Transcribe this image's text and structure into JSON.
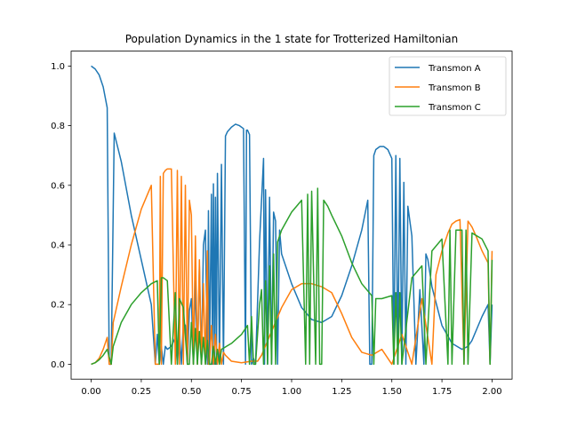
{
  "chart_data": {
    "type": "line",
    "title": "Population Dynamics in the 1 state for Trotterized Hamiltonian",
    "xlabel": "",
    "ylabel": "",
    "xlim": [
      -0.1,
      2.1
    ],
    "ylim": [
      -0.05,
      1.05
    ],
    "xticks": [
      "0.00",
      "0.25",
      "0.50",
      "0.75",
      "1.00",
      "1.25",
      "1.50",
      "1.75",
      "2.00"
    ],
    "yticks": [
      "0.0",
      "0.2",
      "0.4",
      "0.6",
      "0.8",
      "1.0"
    ],
    "grid": false,
    "legend_position": "top-right",
    "series": [
      {
        "name": "Transmon A",
        "color": "#1f77b4",
        "x": [
          0.0,
          0.02,
          0.04,
          0.06,
          0.08,
          0.09,
          0.1,
          0.115,
          0.15,
          0.2,
          0.25,
          0.3,
          0.32,
          0.33,
          0.34,
          0.35,
          0.36,
          0.37,
          0.38,
          0.4,
          0.42,
          0.43,
          0.44,
          0.45,
          0.46,
          0.47,
          0.48,
          0.49,
          0.5,
          0.51,
          0.52,
          0.53,
          0.54,
          0.55,
          0.56,
          0.57,
          0.58,
          0.585,
          0.59,
          0.6,
          0.605,
          0.61,
          0.615,
          0.62,
          0.625,
          0.63,
          0.64,
          0.65,
          0.66,
          0.67,
          0.68,
          0.7,
          0.72,
          0.74,
          0.76,
          0.77,
          0.775,
          0.78,
          0.79,
          0.8,
          0.81,
          0.82,
          0.84,
          0.86,
          0.865,
          0.87,
          0.88,
          0.89,
          0.9,
          0.91,
          0.92,
          0.93,
          0.94,
          0.95,
          1.0,
          1.05,
          1.1,
          1.15,
          1.2,
          1.25,
          1.3,
          1.35,
          1.38,
          1.39,
          1.4,
          1.41,
          1.42,
          1.44,
          1.46,
          1.48,
          1.5,
          1.51,
          1.52,
          1.53,
          1.54,
          1.55,
          1.56,
          1.57,
          1.58,
          1.6,
          1.62,
          1.64,
          1.66,
          1.67,
          1.68,
          1.7,
          1.75,
          1.8,
          1.85,
          1.88,
          1.9,
          1.95,
          1.98,
          1.99,
          2.0
        ],
        "values": [
          1.0,
          0.99,
          0.97,
          0.93,
          0.86,
          0.0,
          0.0,
          0.775,
          0.68,
          0.5,
          0.35,
          0.2,
          0.0,
          0.1,
          0.0,
          0.06,
          0.0,
          0.06,
          0.05,
          0.06,
          0.09,
          0.0,
          0.11,
          0.0,
          0.14,
          0.13,
          0.0,
          0.18,
          0.22,
          0.0,
          0.28,
          0.0,
          0.33,
          0.0,
          0.4,
          0.45,
          0.0,
          0.515,
          0.0,
          0.57,
          0.0,
          0.605,
          0.0,
          0.56,
          0.0,
          0.64,
          0.0,
          0.67,
          0.0,
          0.765,
          0.78,
          0.795,
          0.805,
          0.8,
          0.79,
          0.0,
          0.785,
          0.785,
          0.77,
          0.0,
          0.02,
          0.0,
          0.41,
          0.69,
          0.0,
          0.585,
          0.0,
          0.56,
          0.0,
          0.51,
          0.48,
          0.0,
          0.45,
          0.37,
          0.27,
          0.19,
          0.15,
          0.14,
          0.16,
          0.23,
          0.33,
          0.45,
          0.55,
          0.0,
          0.0,
          0.7,
          0.72,
          0.73,
          0.73,
          0.72,
          0.69,
          0.0,
          0.7,
          0.0,
          0.69,
          0.0,
          0.61,
          0.0,
          0.53,
          0.43,
          0.0,
          0.25,
          0.0,
          0.37,
          0.35,
          0.26,
          0.13,
          0.07,
          0.05,
          0.06,
          0.08,
          0.16,
          0.2,
          0.0,
          0.2
        ]
      },
      {
        "name": "Transmon B",
        "color": "#ff7f0e",
        "x": [
          0.0,
          0.02,
          0.04,
          0.06,
          0.08,
          0.09,
          0.1,
          0.11,
          0.15,
          0.2,
          0.25,
          0.3,
          0.32,
          0.33,
          0.34,
          0.345,
          0.35,
          0.36,
          0.37,
          0.38,
          0.4,
          0.42,
          0.43,
          0.44,
          0.45,
          0.46,
          0.47,
          0.48,
          0.49,
          0.5,
          0.51,
          0.52,
          0.53,
          0.54,
          0.55,
          0.56,
          0.57,
          0.58,
          0.585,
          0.59,
          0.6,
          0.61,
          0.62,
          0.63,
          0.64,
          0.65,
          0.66,
          0.67,
          0.7,
          0.75,
          0.8,
          0.83,
          0.85,
          0.9,
          0.95,
          1.0,
          1.05,
          1.1,
          1.15,
          1.2,
          1.25,
          1.3,
          1.35,
          1.4,
          1.45,
          1.5,
          1.55,
          1.6,
          1.65,
          1.7,
          1.72,
          1.75,
          1.78,
          1.8,
          1.82,
          1.84,
          1.86,
          1.88,
          1.9,
          1.92,
          1.95,
          1.98,
          1.99,
          2.0
        ],
        "values": [
          0.0,
          0.005,
          0.02,
          0.05,
          0.09,
          0.0,
          0.0,
          0.14,
          0.26,
          0.4,
          0.52,
          0.6,
          0.0,
          0.0,
          0.0,
          0.63,
          0.0,
          0.64,
          0.65,
          0.655,
          0.655,
          0.0,
          0.65,
          0.0,
          0.63,
          0.0,
          0.6,
          0.0,
          0.55,
          0.5,
          0.0,
          0.43,
          0.0,
          0.35,
          0.0,
          0.27,
          0.0,
          0.38,
          0.0,
          0.0,
          0.13,
          0.0,
          0.1,
          0.0,
          0.07,
          0.0,
          0.04,
          0.03,
          0.01,
          0.005,
          0.01,
          0.01,
          0.03,
          0.11,
          0.19,
          0.25,
          0.27,
          0.27,
          0.26,
          0.24,
          0.17,
          0.09,
          0.04,
          0.03,
          0.05,
          0.0,
          0.1,
          0.0,
          0.22,
          0.0,
          0.3,
          0.38,
          0.44,
          0.47,
          0.48,
          0.485,
          0.0,
          0.48,
          0.46,
          0.43,
          0.38,
          0.34,
          0.0,
          0.38
        ]
      },
      {
        "name": "Transmon C",
        "color": "#2ca02c",
        "x": [
          0.0,
          0.02,
          0.04,
          0.06,
          0.08,
          0.1,
          0.11,
          0.15,
          0.2,
          0.25,
          0.3,
          0.33,
          0.34,
          0.35,
          0.36,
          0.38,
          0.4,
          0.42,
          0.43,
          0.44,
          0.46,
          0.48,
          0.49,
          0.5,
          0.51,
          0.52,
          0.53,
          0.54,
          0.55,
          0.56,
          0.57,
          0.58,
          0.59,
          0.6,
          0.61,
          0.62,
          0.63,
          0.64,
          0.65,
          0.7,
          0.75,
          0.78,
          0.79,
          0.8,
          0.81,
          0.82,
          0.84,
          0.85,
          0.86,
          0.87,
          0.88,
          0.89,
          0.9,
          0.91,
          0.92,
          0.93,
          0.95,
          1.0,
          1.05,
          1.07,
          1.08,
          1.09,
          1.1,
          1.12,
          1.13,
          1.14,
          1.15,
          1.16,
          1.18,
          1.2,
          1.25,
          1.3,
          1.35,
          1.4,
          1.41,
          1.42,
          1.45,
          1.5,
          1.51,
          1.52,
          1.53,
          1.54,
          1.55,
          1.6,
          1.65,
          1.67,
          1.7,
          1.75,
          1.78,
          1.79,
          1.8,
          1.82,
          1.85,
          1.86,
          1.87,
          1.88,
          1.9,
          1.95,
          1.98,
          1.99,
          2.0
        ],
        "values": [
          0.0,
          0.005,
          0.015,
          0.03,
          0.05,
          0.0,
          0.06,
          0.14,
          0.2,
          0.24,
          0.27,
          0.28,
          0.0,
          0.29,
          0.29,
          0.28,
          0.0,
          0.24,
          0.0,
          0.22,
          0.19,
          0.0,
          0.0,
          0.14,
          0.0,
          0.12,
          0.0,
          0.11,
          0.0,
          0.09,
          0.0,
          0.08,
          0.0,
          0.0,
          0.06,
          0.0,
          0.05,
          0.0,
          0.05,
          0.07,
          0.1,
          0.13,
          0.0,
          0.16,
          0.0,
          0.0,
          0.2,
          0.25,
          0.0,
          0.28,
          0.0,
          0.33,
          0.0,
          0.37,
          0.0,
          0.41,
          0.45,
          0.51,
          0.55,
          0.0,
          0.57,
          0.0,
          0.58,
          0.0,
          0.59,
          0.0,
          0.0,
          0.55,
          0.53,
          0.5,
          0.43,
          0.34,
          0.27,
          0.23,
          0.0,
          0.22,
          0.22,
          0.23,
          0.0,
          0.24,
          0.0,
          0.24,
          0.0,
          0.29,
          0.33,
          0.0,
          0.38,
          0.42,
          0.0,
          0.45,
          0.0,
          0.45,
          0.45,
          0.0,
          0.45,
          0.0,
          0.44,
          0.42,
          0.38,
          0.0,
          0.35
        ]
      }
    ]
  }
}
